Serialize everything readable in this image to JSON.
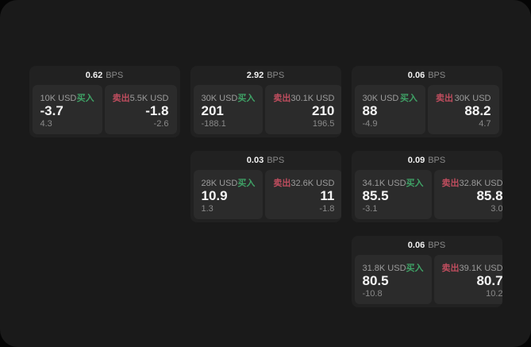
{
  "labels": {
    "bps_unit": "BPS",
    "buy": "买入",
    "sell": "卖出"
  },
  "colors": {
    "surround": "#050505",
    "window_bg": "#1a1a1a",
    "card_bg": "#212121",
    "panel_bg": "#2b2b2b",
    "buy_green": "#3fa266",
    "sell_red": "#bf4d5e",
    "primary_text": "#f5f5f5",
    "muted_text": "#8a8a8a"
  },
  "cards": [
    {
      "bps": "0.62",
      "buy": {
        "size": "10K USD",
        "price": "-3.7",
        "sub": "4.3"
      },
      "sell": {
        "size": "5.5K USD",
        "price": "-1.8",
        "sub": "-2.6"
      }
    },
    {
      "bps": "2.92",
      "buy": {
        "size": "30K USD",
        "price": "201",
        "sub": "-188.1"
      },
      "sell": {
        "size": "30.1K USD",
        "price": "210",
        "sub": "196.5"
      }
    },
    {
      "bps": "0.06",
      "buy": {
        "size": "30K USD",
        "price": "88",
        "sub": "-4.9"
      },
      "sell": {
        "size": "30K USD",
        "price": "88.2",
        "sub": "4.7"
      }
    },
    {
      "bps": "0.03",
      "buy": {
        "size": "28K USD",
        "price": "10.9",
        "sub": "1.3"
      },
      "sell": {
        "size": "32.6K USD",
        "price": "11",
        "sub": "-1.8"
      }
    },
    {
      "bps": "0.09",
      "buy": {
        "size": "34.1K USD",
        "price": "85.5",
        "sub": "-3.1"
      },
      "sell": {
        "size": "32.8K USD",
        "price": "85.8",
        "sub": "3.0"
      }
    },
    {
      "bps": "0.06",
      "buy": {
        "size": "31.8K USD",
        "price": "80.5",
        "sub": "-10.8"
      },
      "sell": {
        "size": "39.1K USD",
        "price": "80.7",
        "sub": "10.2"
      }
    }
  ]
}
